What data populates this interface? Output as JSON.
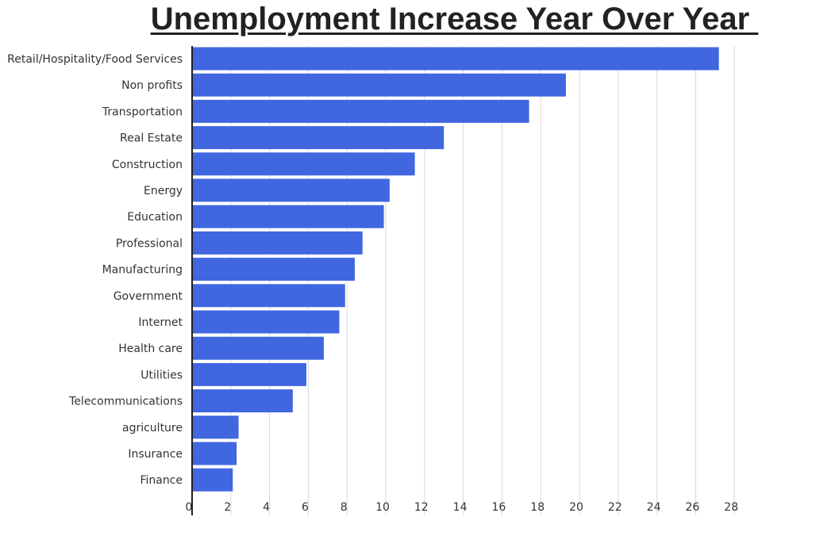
{
  "chart_data": {
    "type": "bar",
    "orientation": "horizontal",
    "title": "Unemployment Increase Year Over Year ",
    "xlabel": "",
    "ylabel": "",
    "categories": [
      "Retail/Hospitality/Food Services",
      "Non profits",
      "Transportation",
      "Real Estate",
      "Construction",
      "Energy",
      "Education",
      "Professional",
      "Manufacturing",
      "Government",
      "Internet",
      "Health care",
      "Utilities",
      "Telecommunications",
      "agriculture",
      "Insurance",
      "Finance"
    ],
    "values": [
      27.2,
      19.3,
      17.4,
      13.0,
      11.5,
      10.2,
      9.9,
      8.8,
      8.4,
      7.9,
      7.6,
      6.8,
      5.9,
      5.2,
      2.4,
      2.3,
      2.1
    ],
    "xlim": [
      0,
      28
    ],
    "xticks": [
      "0",
      "2",
      "4",
      "6",
      "8",
      "10",
      "12",
      "14",
      "16",
      "18",
      "20",
      "22",
      "24",
      "26",
      "28"
    ],
    "grid": true,
    "bar_color": "#4066e0",
    "grid_color": "#d9d9d9",
    "axis_color": "#222222"
  }
}
